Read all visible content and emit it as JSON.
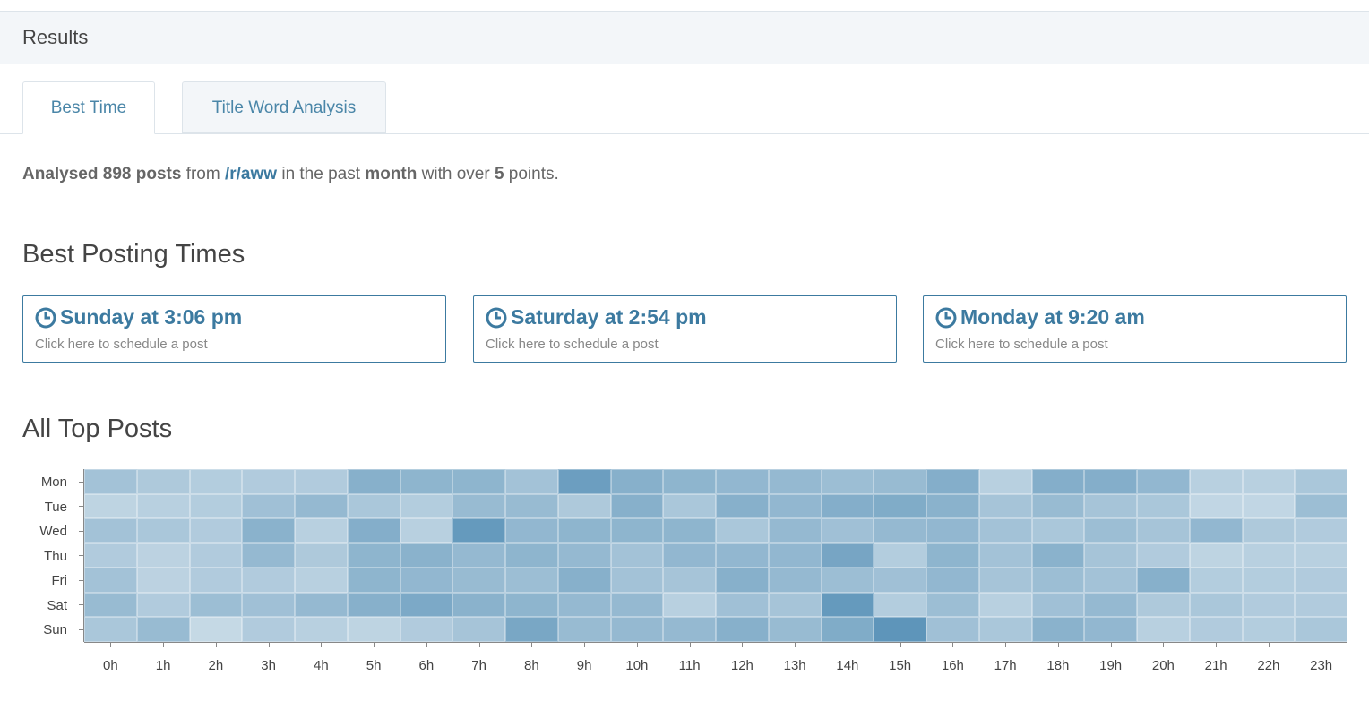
{
  "header": {
    "title": "Results"
  },
  "tabs": [
    {
      "label": "Best Time",
      "active": true
    },
    {
      "label": "Title Word Analysis",
      "active": false
    }
  ],
  "summary": {
    "analysed": "Analysed 898 posts",
    "from": " from ",
    "subreddit": "/r/aww",
    "in_the_past": " in the past ",
    "period": "month",
    "with_over": " with over ",
    "points": "5",
    "points_suffix": " points."
  },
  "best_times": {
    "title": "Best Posting Times",
    "cards": [
      {
        "time": "Sunday at 3:06 pm",
        "action": "Click here to schedule a post",
        "icon": "clock-icon"
      },
      {
        "time": "Saturday at 2:54 pm",
        "action": "Click here to schedule a post",
        "icon": "clock-icon"
      },
      {
        "time": "Monday at 9:20 am",
        "action": "Click here to schedule a post",
        "icon": "clock-icon"
      }
    ]
  },
  "heatmap_title": "All Top Posts",
  "colors": {
    "accent": "#3c7aa0",
    "heat_base": "#4a8ab0"
  },
  "chart_data": {
    "type": "heatmap",
    "title": "All Top Posts",
    "rows": [
      "Mon",
      "Tue",
      "Wed",
      "Thu",
      "Fri",
      "Sat",
      "Sun"
    ],
    "columns": [
      "0h",
      "1h",
      "2h",
      "3h",
      "4h",
      "5h",
      "6h",
      "7h",
      "8h",
      "9h",
      "10h",
      "11h",
      "12h",
      "13h",
      "14h",
      "15h",
      "16h",
      "17h",
      "18h",
      "19h",
      "20h",
      "21h",
      "22h",
      "23h"
    ],
    "values": [
      [
        0.4,
        0.32,
        0.28,
        0.3,
        0.3,
        0.6,
        0.55,
        0.55,
        0.4,
        0.8,
        0.6,
        0.55,
        0.52,
        0.5,
        0.45,
        0.48,
        0.62,
        0.25,
        0.62,
        0.62,
        0.52,
        0.25,
        0.25,
        0.35
      ],
      [
        0.2,
        0.25,
        0.28,
        0.42,
        0.5,
        0.35,
        0.28,
        0.48,
        0.48,
        0.32,
        0.6,
        0.35,
        0.6,
        0.52,
        0.62,
        0.65,
        0.58,
        0.38,
        0.48,
        0.38,
        0.35,
        0.18,
        0.18,
        0.45
      ],
      [
        0.4,
        0.35,
        0.3,
        0.58,
        0.25,
        0.62,
        0.25,
        0.85,
        0.52,
        0.55,
        0.55,
        0.55,
        0.35,
        0.5,
        0.42,
        0.5,
        0.52,
        0.4,
        0.35,
        0.45,
        0.38,
        0.52,
        0.32,
        0.3
      ],
      [
        0.3,
        0.22,
        0.3,
        0.5,
        0.32,
        0.55,
        0.58,
        0.5,
        0.55,
        0.5,
        0.4,
        0.52,
        0.52,
        0.52,
        0.72,
        0.28,
        0.55,
        0.4,
        0.58,
        0.38,
        0.3,
        0.2,
        0.25,
        0.25
      ],
      [
        0.4,
        0.22,
        0.3,
        0.3,
        0.25,
        0.55,
        0.52,
        0.48,
        0.45,
        0.6,
        0.4,
        0.38,
        0.6,
        0.5,
        0.45,
        0.42,
        0.52,
        0.38,
        0.45,
        0.4,
        0.6,
        0.28,
        0.28,
        0.3
      ],
      [
        0.48,
        0.3,
        0.45,
        0.42,
        0.5,
        0.6,
        0.68,
        0.58,
        0.55,
        0.5,
        0.5,
        0.25,
        0.42,
        0.38,
        0.85,
        0.28,
        0.45,
        0.25,
        0.42,
        0.5,
        0.32,
        0.35,
        0.3,
        0.3
      ],
      [
        0.35,
        0.48,
        0.15,
        0.3,
        0.25,
        0.2,
        0.3,
        0.38,
        0.7,
        0.48,
        0.5,
        0.5,
        0.6,
        0.48,
        0.65,
        0.9,
        0.42,
        0.35,
        0.58,
        0.52,
        0.25,
        0.3,
        0.28,
        0.35
      ]
    ]
  }
}
